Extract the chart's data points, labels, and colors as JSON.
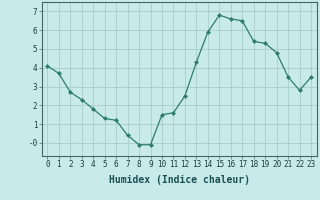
{
  "x": [
    0,
    1,
    2,
    3,
    4,
    5,
    6,
    7,
    8,
    9,
    10,
    11,
    12,
    13,
    14,
    15,
    16,
    17,
    18,
    19,
    20,
    21,
    22,
    23
  ],
  "y": [
    4.1,
    3.7,
    2.7,
    2.3,
    1.8,
    1.3,
    1.2,
    0.4,
    -0.1,
    -0.1,
    1.5,
    1.6,
    2.5,
    4.3,
    5.9,
    6.8,
    6.6,
    6.5,
    5.4,
    5.3,
    4.8,
    3.5,
    2.8,
    3.5
  ],
  "line_color": "#2e7d6e",
  "marker": "D",
  "marker_size": 2.0,
  "bg_color": "#c8eaea",
  "grid_color": "#a8cccc",
  "xlabel": "Humidex (Indice chaleur)",
  "ylim": [
    -0.7,
    7.5
  ],
  "xlim": [
    -0.5,
    23.5
  ],
  "yticks": [
    0,
    1,
    2,
    3,
    4,
    5,
    6,
    7
  ],
  "ytick_labels": [
    "-0",
    "1",
    "2",
    "3",
    "4",
    "5",
    "6",
    "7"
  ],
  "xticks": [
    0,
    1,
    2,
    3,
    4,
    5,
    6,
    7,
    8,
    9,
    10,
    11,
    12,
    13,
    14,
    15,
    16,
    17,
    18,
    19,
    20,
    21,
    22,
    23
  ],
  "xlabel_fontsize": 7,
  "tick_fontsize": 5.5
}
